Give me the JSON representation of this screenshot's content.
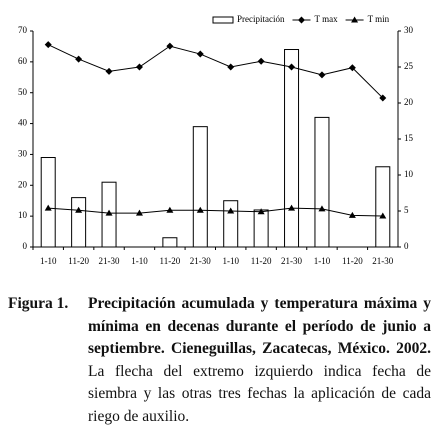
{
  "chart_data": {
    "type": "bar",
    "categories": [
      "1-10",
      "11-20",
      "21-30",
      "1-10",
      "11-20",
      "21-30",
      "1-10",
      "11-20",
      "21-30",
      "1-10",
      "11-20",
      "21-30"
    ],
    "series": [
      {
        "name": "Precipitación",
        "type": "bar",
        "color": "#ffffff",
        "values": [
          29,
          16,
          21,
          0,
          3,
          39,
          15,
          12,
          64,
          42,
          0,
          26
        ]
      },
      {
        "name": "T max",
        "type": "line",
        "marker": "diamond",
        "color": "#000000",
        "axis": "y2",
        "values": [
          28.1,
          26.1,
          24.4,
          25,
          27.9,
          26.8,
          25,
          25.8,
          25,
          23.9,
          24.9,
          20.7
        ]
      },
      {
        "name": "T min",
        "type": "line",
        "marker": "triangle",
        "color": "#000000",
        "axis": "y2",
        "values": [
          5.4,
          5.1,
          4.7,
          4.7,
          5.1,
          5.1,
          5.0,
          4.9,
          5.4,
          5.3,
          4.4,
          4.3
        ]
      }
    ],
    "ylim": [
      0,
      70
    ],
    "yticks": [
      0,
      10,
      20,
      30,
      40,
      50,
      60,
      70
    ],
    "y2lim": [
      0,
      30
    ],
    "y2ticks": [
      0,
      5,
      10,
      15,
      20,
      25,
      30
    ],
    "legend": "top"
  },
  "caption": {
    "label": "Figura 1.",
    "bold": "Precipitación acumulada y temperatura máxima y mínima en decenas durante el período de junio a septiembre. Cieneguillas, Zacatecas, México. 2002.",
    "text": "La flecha del extremo izquierdo indica fecha de siembra y las otras tres fechas la aplicación de cada riego de auxilio."
  }
}
